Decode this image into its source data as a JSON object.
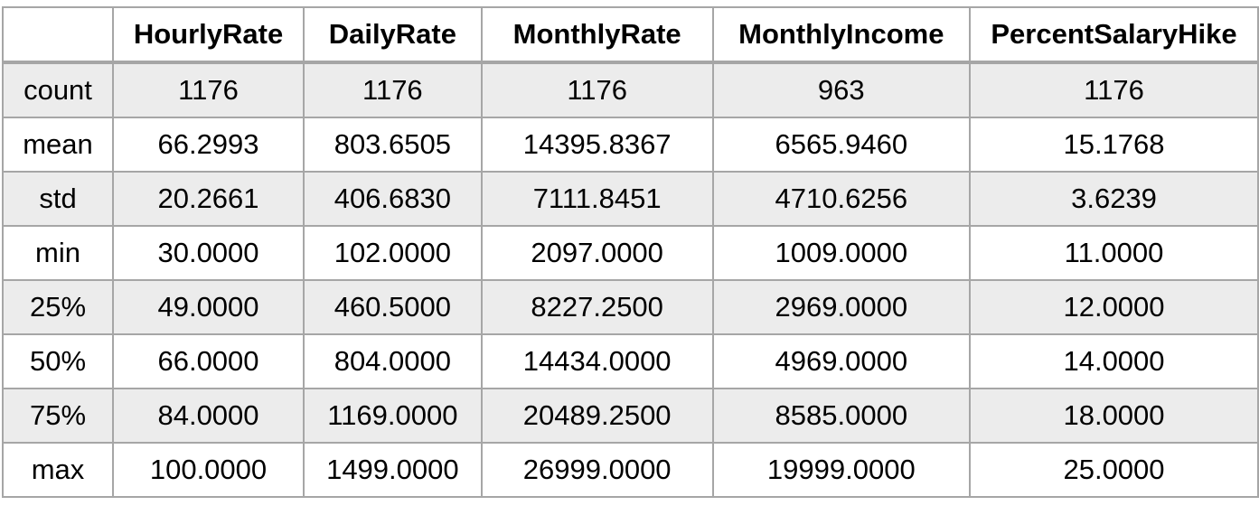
{
  "table": {
    "corner": "",
    "columns": [
      "HourlyRate",
      "DailyRate",
      "MonthlyRate",
      "MonthlyIncome",
      "PercentSalaryHike"
    ],
    "rows": [
      {
        "label": "count",
        "values": [
          "1176",
          "1176",
          "1176",
          "963",
          "1176"
        ]
      },
      {
        "label": "mean",
        "values": [
          "66.2993",
          "803.6505",
          "14395.8367",
          "6565.9460",
          "15.1768"
        ]
      },
      {
        "label": "std",
        "values": [
          "20.2661",
          "406.6830",
          "7111.8451",
          "4710.6256",
          "3.6239"
        ]
      },
      {
        "label": "min",
        "values": [
          "30.0000",
          "102.0000",
          "2097.0000",
          "1009.0000",
          "11.0000"
        ]
      },
      {
        "label": "25%",
        "values": [
          "49.0000",
          "460.5000",
          "8227.2500",
          "2969.0000",
          "12.0000"
        ]
      },
      {
        "label": "50%",
        "values": [
          "66.0000",
          "804.0000",
          "14434.0000",
          "4969.0000",
          "14.0000"
        ]
      },
      {
        "label": "75%",
        "values": [
          "84.0000",
          "1169.0000",
          "20489.2500",
          "8585.0000",
          "18.0000"
        ]
      },
      {
        "label": "max",
        "values": [
          "100.0000",
          "1499.0000",
          "26999.0000",
          "19999.0000",
          "25.0000"
        ]
      }
    ]
  }
}
